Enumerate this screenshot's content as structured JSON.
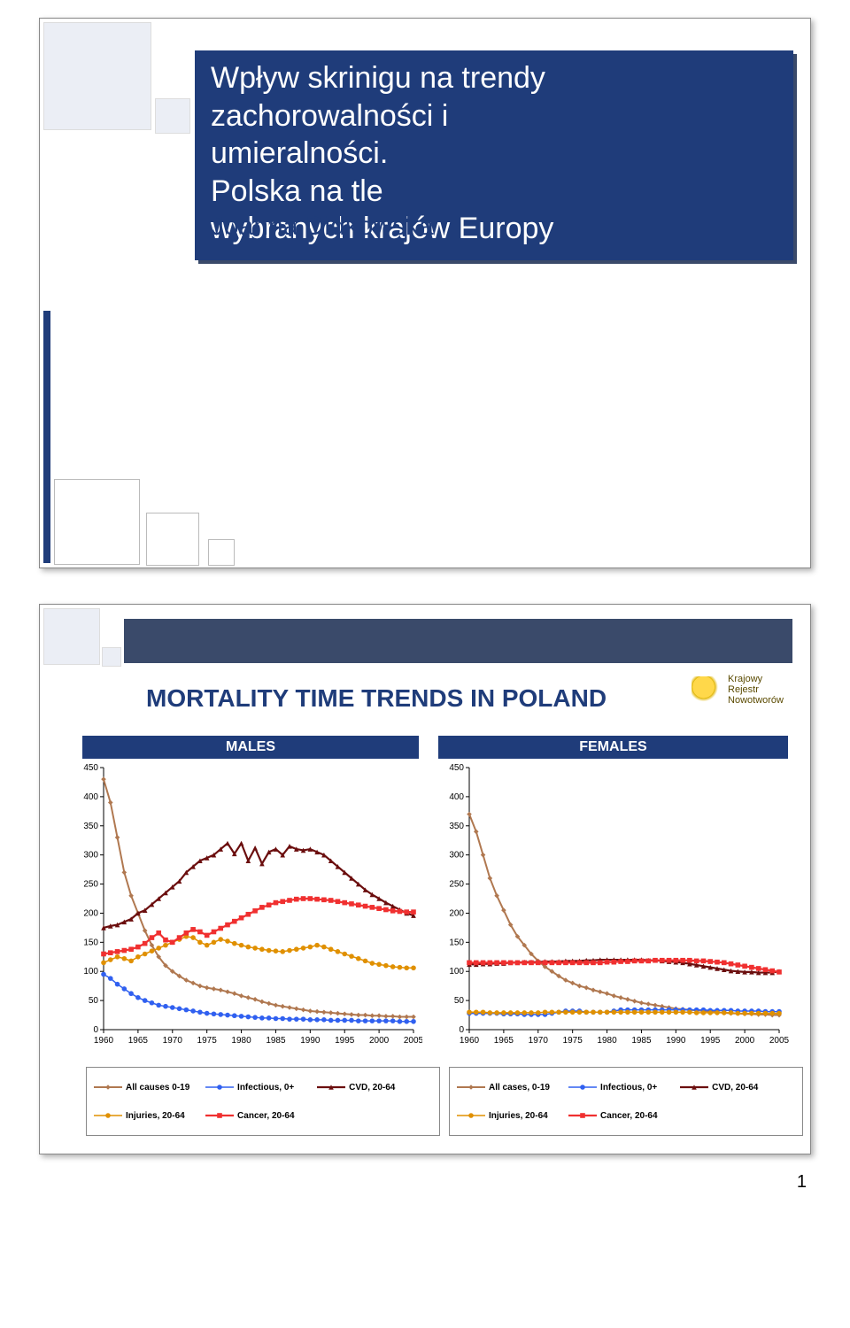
{
  "slide1": {
    "title_l1": "Wpływ skrinigu na trendy",
    "title_l2": "zachorowalności i",
    "title_l3": "umieralności.",
    "title_l4": "Polska na tle",
    "title_l5": "wybranych krajów Europy",
    "author": "Joanna Didkowska"
  },
  "slide2": {
    "title": "MORTALITY TIME TRENDS IN POLAND",
    "logo_l1": "Krajowy",
    "logo_l2": "Rejestr",
    "logo_l3": "Nowotworów",
    "header_m": "MALES",
    "header_f": "FEMALES",
    "y_ticks": [
      0,
      50,
      100,
      150,
      200,
      250,
      300,
      350,
      400,
      450
    ],
    "x_ticks": [
      1960,
      1965,
      1970,
      1975,
      1980,
      1985,
      1990,
      1995,
      2000,
      2005
    ],
    "y_max": 450,
    "x_min": 1960,
    "x_max": 2005,
    "series_defs": [
      {
        "id": "all",
        "label_m": "All causes 0-19",
        "label_f": "All cases, 0-19",
        "color": "#b07850",
        "marker": "diamond",
        "width": 2
      },
      {
        "id": "inf",
        "label_m": "Infectious, 0+",
        "label_f": "Infectious, 0+",
        "color": "#3060f0",
        "marker": "circle",
        "width": 1.5
      },
      {
        "id": "cvd",
        "label_m": "CVD, 20-64",
        "label_f": "CVD, 20-64",
        "color": "#6b0e0e",
        "marker": "triangle",
        "width": 2.2
      },
      {
        "id": "inj",
        "label_m": "Injuries, 20-64",
        "label_f": "Injuries, 20-64",
        "color": "#e09000",
        "marker": "circle",
        "width": 1.5
      },
      {
        "id": "can",
        "label_m": "Cancer, 20-64",
        "label_f": "Cancer, 20-64",
        "color": "#f03030",
        "marker": "square",
        "width": 2.2
      }
    ],
    "males": {
      "all": [
        430,
        390,
        330,
        270,
        230,
        200,
        170,
        145,
        125,
        110,
        100,
        92,
        85,
        80,
        75,
        72,
        70,
        68,
        65,
        62,
        58,
        55,
        52,
        48,
        45,
        42,
        40,
        38,
        36,
        34,
        32,
        31,
        30,
        29,
        28,
        27,
        26,
        25,
        25,
        24,
        24,
        23,
        23,
        22,
        22,
        22
      ],
      "inf": [
        95,
        88,
        78,
        70,
        62,
        55,
        50,
        46,
        42,
        40,
        38,
        36,
        34,
        32,
        30,
        28,
        27,
        26,
        25,
        24,
        23,
        22,
        21,
        20,
        20,
        19,
        19,
        18,
        18,
        18,
        17,
        17,
        17,
        16,
        16,
        16,
        16,
        15,
        15,
        15,
        15,
        15,
        15,
        14,
        14,
        14
      ],
      "cvd": [
        175,
        178,
        180,
        185,
        190,
        200,
        205,
        215,
        225,
        235,
        245,
        255,
        270,
        280,
        290,
        295,
        300,
        310,
        320,
        302,
        320,
        290,
        312,
        285,
        305,
        310,
        300,
        315,
        310,
        308,
        310,
        305,
        300,
        290,
        280,
        270,
        260,
        250,
        240,
        232,
        225,
        218,
        212,
        206,
        200,
        196
      ],
      "inj": [
        115,
        120,
        125,
        122,
        118,
        125,
        130,
        135,
        140,
        145,
        150,
        155,
        160,
        158,
        150,
        145,
        150,
        155,
        152,
        148,
        145,
        142,
        140,
        138,
        136,
        135,
        134,
        136,
        138,
        140,
        142,
        145,
        142,
        138,
        134,
        130,
        126,
        122,
        118,
        114,
        112,
        110,
        108,
        107,
        106,
        106
      ],
      "can": [
        130,
        132,
        134,
        136,
        138,
        142,
        148,
        158,
        166,
        154,
        150,
        158,
        166,
        172,
        168,
        162,
        168,
        174,
        180,
        186,
        192,
        198,
        204,
        210,
        214,
        218,
        220,
        222,
        224,
        225,
        225,
        224,
        223,
        222,
        220,
        218,
        216,
        214,
        212,
        210,
        208,
        206,
        204,
        203,
        202,
        202
      ]
    },
    "females": {
      "all": [
        370,
        340,
        300,
        260,
        230,
        205,
        180,
        160,
        145,
        130,
        118,
        108,
        100,
        92,
        85,
        80,
        75,
        72,
        68,
        65,
        62,
        58,
        55,
        52,
        49,
        46,
        44,
        42,
        40,
        38,
        36,
        35,
        34,
        33,
        32,
        31,
        30,
        29,
        28,
        28,
        27,
        27,
        26,
        26,
        25,
        25
      ],
      "inf": [
        28,
        28,
        28,
        28,
        28,
        27,
        27,
        27,
        26,
        26,
        26,
        26,
        28,
        30,
        32,
        32,
        32,
        30,
        30,
        30,
        30,
        32,
        34,
        34,
        34,
        34,
        34,
        34,
        34,
        34,
        34,
        34,
        34,
        34,
        34,
        33,
        33,
        33,
        33,
        32,
        32,
        32,
        32,
        31,
        31,
        31
      ],
      "cvd": [
        112,
        112,
        113,
        113,
        114,
        114,
        115,
        115,
        116,
        116,
        116,
        117,
        117,
        117,
        118,
        118,
        118,
        119,
        119,
        120,
        120,
        120,
        120,
        120,
        120,
        120,
        119,
        119,
        118,
        117,
        116,
        115,
        113,
        111,
        109,
        107,
        105,
        103,
        101,
        100,
        99,
        99,
        98,
        98,
        98,
        100
      ],
      "inj": [
        30,
        30,
        30,
        29,
        29,
        29,
        29,
        29,
        29,
        29,
        29,
        30,
        30,
        30,
        30,
        30,
        30,
        30,
        30,
        30,
        30,
        30,
        30,
        30,
        30,
        30,
        30,
        30,
        30,
        30,
        30,
        30,
        30,
        29,
        29,
        29,
        29,
        29,
        29,
        28,
        28,
        28,
        28,
        28,
        28,
        28
      ],
      "can": [
        115,
        115,
        115,
        115,
        115,
        115,
        115,
        115,
        115,
        115,
        115,
        115,
        115,
        115,
        115,
        115,
        115,
        115,
        115,
        115,
        116,
        116,
        117,
        117,
        118,
        118,
        118,
        119,
        119,
        119,
        119,
        119,
        119,
        118,
        118,
        117,
        116,
        115,
        113,
        111,
        109,
        107,
        105,
        103,
        101,
        99
      ]
    }
  },
  "page_number": "1"
}
